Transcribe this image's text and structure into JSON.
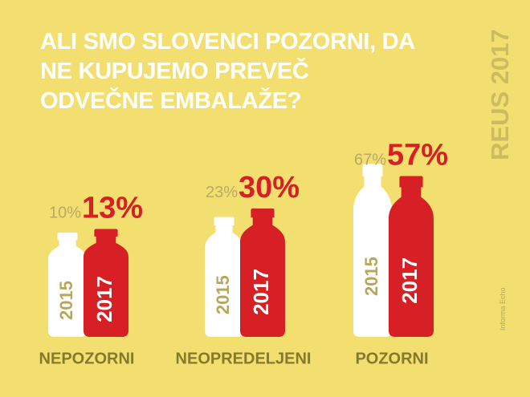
{
  "chart_data": {
    "type": "bar",
    "title": "ALI SMO SLOVENCI POZORNI, DA NE KUPUJEMO PREVEČ ODVEČNE EMBALAŽE?",
    "side_label": "REUS 2017",
    "source": "Informa Echo",
    "categories": [
      "NEPOZORNI",
      "NEOPREDELJENI",
      "POZORNI"
    ],
    "series": [
      {
        "name": "2015",
        "color": "#ffffff",
        "values": [
          10,
          23,
          67
        ],
        "value_labels": [
          "10%",
          "23%",
          "67%"
        ]
      },
      {
        "name": "2017",
        "color": "#d71f26",
        "values": [
          13,
          30,
          57
        ],
        "value_labels": [
          "13%",
          "30%",
          "57%"
        ]
      }
    ]
  }
}
